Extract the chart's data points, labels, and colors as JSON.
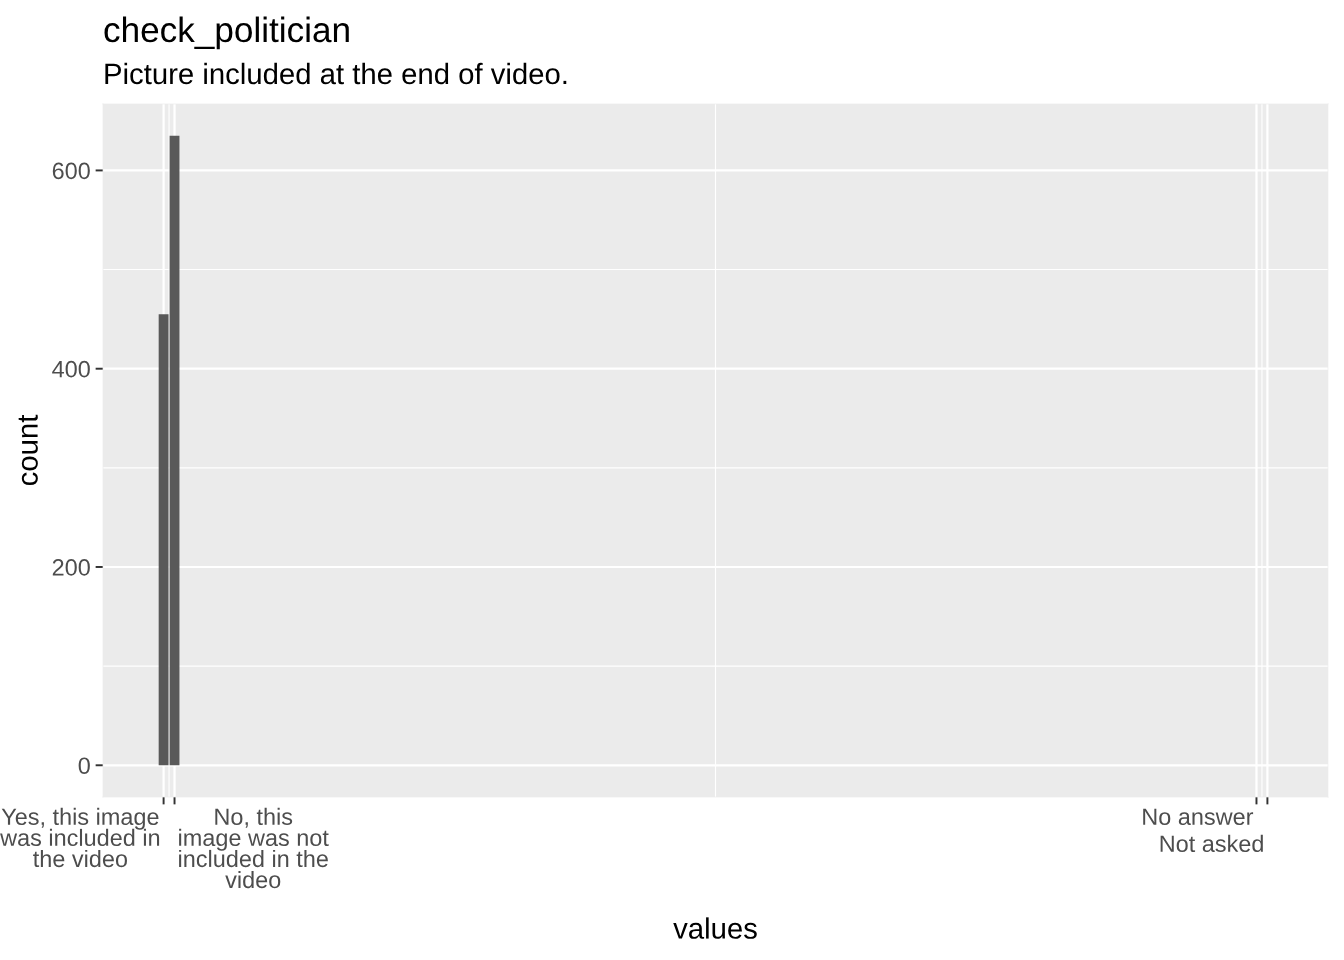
{
  "chart_data": {
    "type": "bar",
    "title": "check_politician",
    "subtitle": "Picture included at the end of video.",
    "xlabel": "values",
    "ylabel": "count",
    "categories": [
      "Yes, this image\nwas included in\nthe video",
      "No, this\nimage was not\nincluded in the\nvideo",
      null,
      null,
      null,
      null,
      null,
      null,
      null,
      null,
      null,
      null,
      null,
      null,
      null,
      null,
      null,
      null,
      null,
      null,
      null,
      null,
      null,
      null,
      null,
      null,
      null,
      null,
      null,
      null,
      null,
      null,
      null,
      null,
      null,
      null,
      null,
      null,
      null,
      null,
      null,
      null,
      null,
      null,
      null,
      null,
      null,
      null,
      null,
      null,
      null,
      null,
      null,
      null,
      null,
      null,
      null,
      null,
      null,
      null,
      null,
      null,
      null,
      null,
      null,
      null,
      null,
      null,
      null,
      null,
      null,
      null,
      null,
      null,
      null,
      null,
      null,
      null,
      null,
      null,
      null,
      null,
      null,
      null,
      null,
      null,
      null,
      null,
      null,
      null,
      null,
      null,
      null,
      null,
      null,
      null,
      null,
      null,
      null,
      null,
      "No answer",
      "Not asked"
    ],
    "values": [
      455,
      635,
      null,
      null,
      null,
      null,
      null,
      null,
      null,
      null,
      null,
      null,
      null,
      null,
      null,
      null,
      null,
      null,
      null,
      null,
      null,
      null,
      null,
      null,
      null,
      null,
      null,
      null,
      null,
      null,
      null,
      null,
      null,
      null,
      null,
      null,
      null,
      null,
      null,
      null,
      null,
      null,
      null,
      null,
      null,
      null,
      null,
      null,
      null,
      null,
      null,
      null,
      null,
      null,
      null,
      null,
      null,
      null,
      null,
      null,
      null,
      null,
      null,
      null,
      null,
      null,
      null,
      null,
      null,
      null,
      null,
      null,
      null,
      null,
      null,
      null,
      null,
      null,
      null,
      null,
      null,
      null,
      null,
      null,
      null,
      null,
      null,
      null,
      null,
      null,
      null,
      null,
      null,
      null,
      null,
      null,
      null,
      null,
      null,
      null,
      null,
      null
    ],
    "color": "#595959",
    "ylim": [
      -32,
      667
    ],
    "yticks": [
      0,
      200,
      400,
      600
    ],
    "grid": true
  }
}
